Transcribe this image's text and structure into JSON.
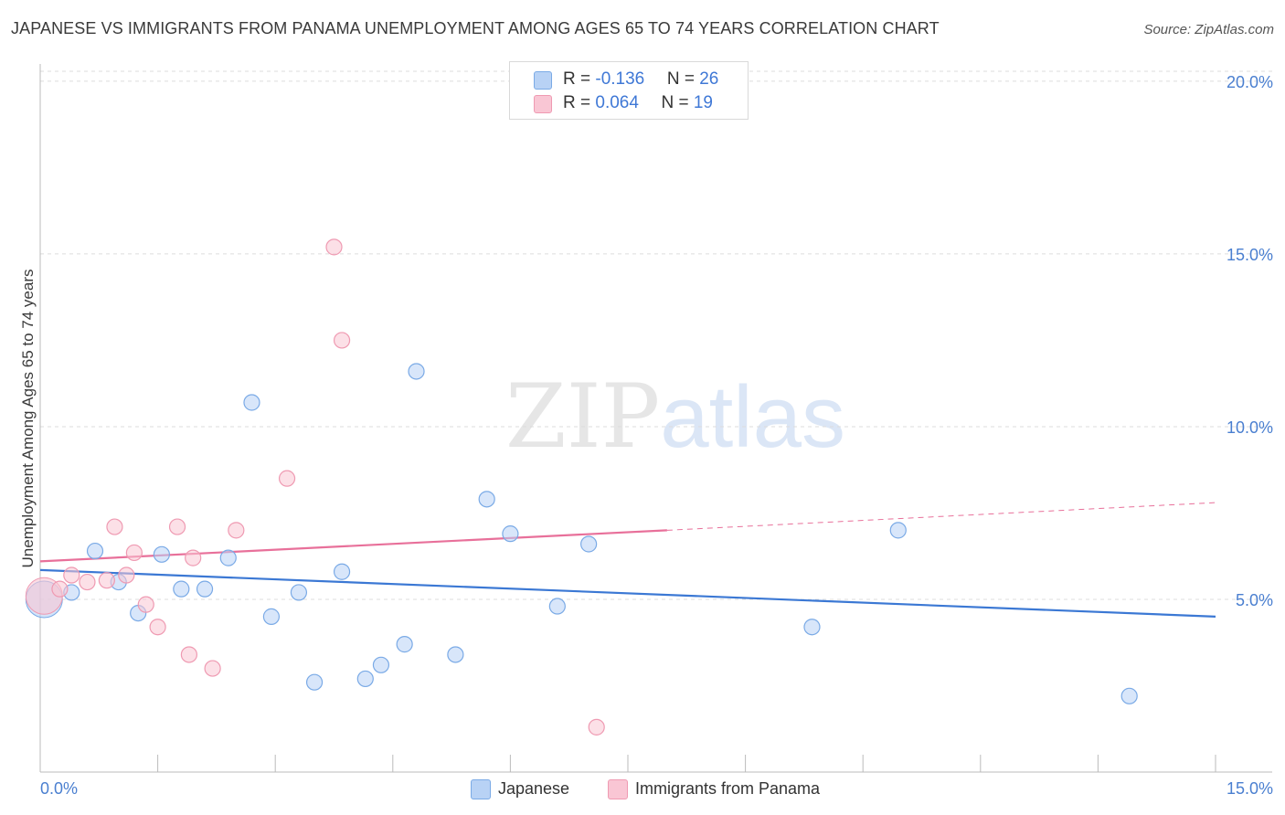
{
  "title": "JAPANESE VS IMMIGRANTS FROM PANAMA UNEMPLOYMENT AMONG AGES 65 TO 74 YEARS CORRELATION CHART",
  "source": "Source: ZipAtlas.com",
  "watermark": {
    "zip": "ZIP",
    "atlas": "atlas"
  },
  "legend": {
    "rows": [
      {
        "r_label": "R = ",
        "r_value": "-0.136",
        "n_label": "N = ",
        "n_value": "26"
      },
      {
        "r_label": "R = ",
        "r_value": "0.064",
        "n_label": "N = ",
        "n_value": "19"
      }
    ]
  },
  "bottom_legend": {
    "japanese": "Japanese",
    "panama": "Immigrants from Panama"
  },
  "colors": {
    "japanese_fill": "#b8d2f5",
    "japanese_stroke": "#7aaae6",
    "japanese_line": "#3b78d4",
    "panama_fill": "#f9c6d4",
    "panama_stroke": "#ef9ab2",
    "panama_line": "#e8709a",
    "tick_text": "#4a7fd0",
    "grid": "#dcdcdc"
  },
  "chart_data": {
    "type": "scatter",
    "title": "JAPANESE VS IMMIGRANTS FROM PANAMA UNEMPLOYMENT AMONG AGES 65 TO 74 YEARS CORRELATION CHART",
    "xlabel": "",
    "ylabel": "Unemployment Among Ages 65 to 74 years",
    "xlim": [
      0,
      15
    ],
    "ylim": [
      0,
      20.5
    ],
    "x_tick_labels": [
      {
        "value": 0,
        "label": "0.0%"
      },
      {
        "value": 15,
        "label": "15.0%"
      }
    ],
    "y_ticks": [
      {
        "value": 5,
        "label": "5.0%"
      },
      {
        "value": 10,
        "label": "10.0%"
      },
      {
        "value": 15,
        "label": "15.0%"
      },
      {
        "value": 20,
        "label": "20.0%"
      }
    ],
    "series": [
      {
        "name": "Japanese",
        "points": [
          {
            "x": 0.05,
            "y": 5.0,
            "big": true
          },
          {
            "x": 0.4,
            "y": 5.2
          },
          {
            "x": 0.7,
            "y": 6.4
          },
          {
            "x": 1.0,
            "y": 5.5
          },
          {
            "x": 1.25,
            "y": 4.6
          },
          {
            "x": 1.55,
            "y": 6.3
          },
          {
            "x": 1.8,
            "y": 5.3
          },
          {
            "x": 2.1,
            "y": 5.3
          },
          {
            "x": 2.4,
            "y": 6.2
          },
          {
            "x": 2.7,
            "y": 10.7
          },
          {
            "x": 2.95,
            "y": 4.5
          },
          {
            "x": 3.3,
            "y": 5.2
          },
          {
            "x": 3.5,
            "y": 2.6
          },
          {
            "x": 3.85,
            "y": 5.8
          },
          {
            "x": 4.15,
            "y": 2.7
          },
          {
            "x": 4.35,
            "y": 3.1
          },
          {
            "x": 4.65,
            "y": 3.7
          },
          {
            "x": 4.8,
            "y": 11.6
          },
          {
            "x": 5.3,
            "y": 3.4
          },
          {
            "x": 5.7,
            "y": 7.9
          },
          {
            "x": 6.0,
            "y": 6.9
          },
          {
            "x": 6.6,
            "y": 4.8
          },
          {
            "x": 7.0,
            "y": 6.6
          },
          {
            "x": 9.85,
            "y": 4.2
          },
          {
            "x": 10.95,
            "y": 7.0
          },
          {
            "x": 13.9,
            "y": 2.2
          }
        ],
        "trend": {
          "x0": 0,
          "y0": 5.85,
          "x1": 15,
          "y1": 4.5
        }
      },
      {
        "name": "Immigrants from Panama",
        "points": [
          {
            "x": 0.05,
            "y": 5.1,
            "big": true
          },
          {
            "x": 0.25,
            "y": 5.3
          },
          {
            "x": 0.4,
            "y": 5.7
          },
          {
            "x": 0.6,
            "y": 5.5
          },
          {
            "x": 0.85,
            "y": 5.55
          },
          {
            "x": 0.95,
            "y": 7.1
          },
          {
            "x": 1.1,
            "y": 5.7
          },
          {
            "x": 1.2,
            "y": 6.35
          },
          {
            "x": 1.35,
            "y": 4.85
          },
          {
            "x": 1.5,
            "y": 4.2
          },
          {
            "x": 1.75,
            "y": 7.1
          },
          {
            "x": 1.9,
            "y": 3.4
          },
          {
            "x": 1.95,
            "y": 6.2
          },
          {
            "x": 2.2,
            "y": 3.0
          },
          {
            "x": 2.5,
            "y": 7.0
          },
          {
            "x": 3.15,
            "y": 8.5
          },
          {
            "x": 3.75,
            "y": 15.2
          },
          {
            "x": 3.85,
            "y": 12.5
          },
          {
            "x": 7.1,
            "y": 1.3
          }
        ],
        "trend": {
          "x0": 0,
          "y0": 6.1,
          "x1": 8.0,
          "y1": 7.0,
          "dashed_to_x": 15,
          "dashed_to_y": 7.8
        }
      }
    ]
  }
}
